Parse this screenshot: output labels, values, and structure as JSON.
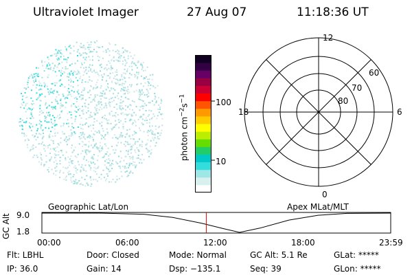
{
  "header": {
    "instrument": "Ultraviolet Imager",
    "date": "27 Aug 07",
    "time": "11:18:36 UT"
  },
  "colorbar": {
    "unit": "photon cm",
    "unit_exp1": "−2",
    "unit_s": "s",
    "unit_exp2": "−1",
    "ticks": [
      {
        "label": "100",
        "value": 100
      },
      {
        "label": "10",
        "value": 10
      }
    ],
    "colors": [
      "#ffffff",
      "#d8f0ee",
      "#9fe6e6",
      "#33dddd",
      "#00c8c8",
      "#22cc66",
      "#66dd00",
      "#bbee00",
      "#ffff00",
      "#ffcc00",
      "#ff9900",
      "#ff5500",
      "#ff0000",
      "#cc0033",
      "#990044",
      "#660066",
      "#330044",
      "#110022"
    ]
  },
  "polar": {
    "mlt_labels": {
      "top": "12",
      "right": "6",
      "bottom": "0",
      "left": "18"
    },
    "lat_labels": [
      "80",
      "70",
      "60"
    ]
  },
  "altitude_plot": {
    "ylabel": "GC Alt",
    "ytick_top": "9.0",
    "ytick_bottom": "1.8",
    "left_title": "Geographic Lat/Lon",
    "right_title": "Apex MLat/MLT",
    "xticks": [
      "00:00",
      "06:00",
      "12:00",
      "18:00",
      "23:59"
    ],
    "series": [
      {
        "hour": 0,
        "alt": 9.0
      },
      {
        "hour": 4,
        "alt": 9.0
      },
      {
        "hour": 7,
        "alt": 8.6
      },
      {
        "hour": 9,
        "alt": 7.4
      },
      {
        "hour": 11,
        "alt": 5.2
      },
      {
        "hour": 12.5,
        "alt": 3.2
      },
      {
        "hour": 13.6,
        "alt": 1.8
      },
      {
        "hour": 15.0,
        "alt": 3.4
      },
      {
        "hour": 17,
        "alt": 6.4
      },
      {
        "hour": 19,
        "alt": 8.2
      },
      {
        "hour": 21,
        "alt": 8.9
      },
      {
        "hour": 23.98,
        "alt": 9.0
      }
    ],
    "current_time_hour": 11.31
  },
  "info": {
    "row1": [
      "Flt: LBHL",
      "Door: Closed",
      "Mode: Normal",
      "GC Alt: 5.1 Re",
      "GLat: *****"
    ],
    "row2": [
      "IP: 36.0",
      "Gain: 14",
      "Dsp: −135.1",
      "Seq: 39",
      "GLon: *****"
    ]
  }
}
